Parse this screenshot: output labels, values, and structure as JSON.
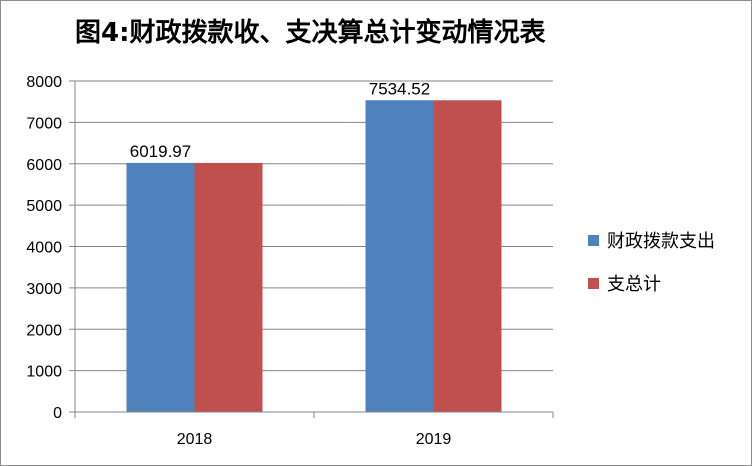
{
  "chart_data": {
    "type": "bar",
    "title": "图4:财政拨款收、支决算总计变动情况表",
    "categories": [
      "2018",
      "2019"
    ],
    "series": [
      {
        "name": "财政拨款支出",
        "values": [
          6019.97,
          7534.52
        ],
        "color": "#4f81bd"
      },
      {
        "name": "支总计",
        "values": [
          6019.97,
          7534.52
        ],
        "color": "#c0504d"
      }
    ],
    "data_labels": [
      {
        "category": "2018",
        "text": "6019.97"
      },
      {
        "category": "2019",
        "text": "7534.52"
      }
    ],
    "yticks": [
      "0",
      "1000",
      "2000",
      "3000",
      "4000",
      "5000",
      "6000",
      "7000",
      "8000"
    ],
    "ylim": [
      0,
      8000
    ],
    "grid": true,
    "legend_position": "right"
  }
}
